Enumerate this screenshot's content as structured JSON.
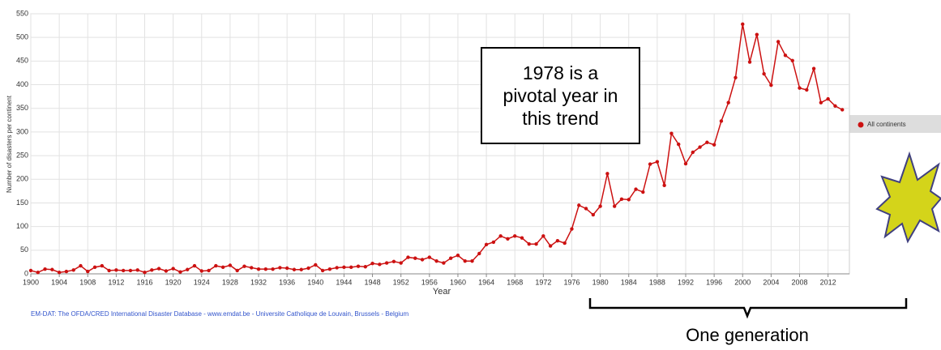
{
  "chart_data": {
    "type": "line",
    "xlabel": "Year",
    "ylabel": "Number of disasters per continent",
    "x": [
      1900,
      1901,
      1902,
      1903,
      1904,
      1905,
      1906,
      1907,
      1908,
      1909,
      1910,
      1911,
      1912,
      1913,
      1914,
      1915,
      1916,
      1917,
      1918,
      1919,
      1920,
      1921,
      1922,
      1923,
      1924,
      1925,
      1926,
      1927,
      1928,
      1929,
      1930,
      1931,
      1932,
      1933,
      1934,
      1935,
      1936,
      1937,
      1938,
      1939,
      1940,
      1941,
      1942,
      1943,
      1944,
      1945,
      1946,
      1947,
      1948,
      1949,
      1950,
      1951,
      1952,
      1953,
      1954,
      1955,
      1956,
      1957,
      1958,
      1959,
      1960,
      1961,
      1962,
      1963,
      1964,
      1965,
      1966,
      1967,
      1968,
      1969,
      1970,
      1971,
      1972,
      1973,
      1974,
      1975,
      1976,
      1977,
      1978,
      1979,
      1980,
      1981,
      1982,
      1983,
      1984,
      1985,
      1986,
      1987,
      1988,
      1989,
      1990,
      1991,
      1992,
      1993,
      1994,
      1995,
      1996,
      1997,
      1998,
      1999,
      2000,
      2001,
      2002,
      2003,
      2004,
      2005,
      2006,
      2007,
      2008,
      2009,
      2010,
      2011,
      2012,
      2013,
      2014
    ],
    "series": [
      {
        "name": "All continents",
        "color": "#cc1111",
        "values": [
          7,
          3,
          10,
          9,
          3,
          5,
          8,
          17,
          5,
          14,
          17,
          7,
          8,
          7,
          7,
          8,
          3,
          8,
          11,
          6,
          11,
          4,
          9,
          17,
          6,
          7,
          17,
          14,
          18,
          7,
          16,
          13,
          10,
          10,
          10,
          13,
          12,
          9,
          9,
          12,
          19,
          7,
          10,
          13,
          14,
          14,
          16,
          15,
          22,
          20,
          23,
          26,
          23,
          35,
          33,
          30,
          35,
          27,
          23,
          33,
          39,
          27,
          27,
          43,
          62,
          67,
          80,
          74,
          80,
          76,
          63,
          63,
          80,
          59,
          70,
          65,
          95,
          145,
          138,
          125,
          143,
          212,
          143,
          158,
          157,
          179,
          173,
          232,
          237,
          187,
          297,
          274,
          233,
          257,
          268,
          278,
          273,
          323,
          362,
          415,
          528,
          448,
          506,
          423,
          399,
          491,
          462,
          451,
          393,
          389,
          434,
          362,
          370,
          355,
          347
        ]
      }
    ],
    "xlim": [
      1900,
      2015
    ],
    "ylim": [
      0,
      550
    ],
    "xticks": [
      1900,
      1904,
      1908,
      1912,
      1916,
      1920,
      1924,
      1928,
      1932,
      1936,
      1940,
      1944,
      1948,
      1952,
      1956,
      1960,
      1964,
      1968,
      1972,
      1976,
      1980,
      1984,
      1988,
      1992,
      1996,
      2000,
      2004,
      2008,
      2012
    ],
    "yticks": [
      0,
      50,
      100,
      150,
      200,
      250,
      300,
      350,
      400,
      450,
      500,
      550
    ],
    "grid": true,
    "legend": "right",
    "source": "EM-DAT: The OFDA/CRED International Disaster Database - www.emdat.be - Universite Catholique de Louvain, Brussels - Belgium",
    "callout": "1978 is a pivotal year in this trend",
    "bracket_label": "One generation"
  }
}
